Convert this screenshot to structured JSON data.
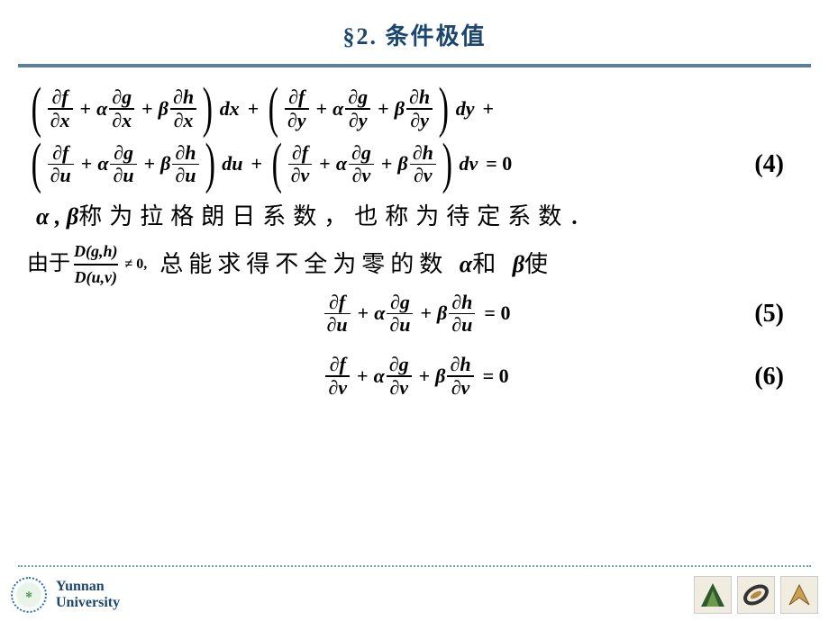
{
  "title": "§2. 条件极值",
  "colors": {
    "title": "#1a4672",
    "rule": "#5a7fa0",
    "text": "#000000",
    "footer_dots": "#739cc0"
  },
  "equations": {
    "line1_groups": [
      {
        "partials": [
          [
            "∂f",
            "∂x"
          ],
          [
            "∂g",
            "∂x"
          ],
          [
            "∂h",
            "∂x"
          ]
        ],
        "coeffs": [
          "",
          "α",
          "β"
        ],
        "diff": "dx"
      },
      {
        "partials": [
          [
            "∂f",
            "∂y"
          ],
          [
            "∂g",
            "∂y"
          ],
          [
            "∂h",
            "∂y"
          ]
        ],
        "coeffs": [
          "",
          "α",
          "β"
        ],
        "diff": "dy"
      }
    ],
    "line2_groups": [
      {
        "partials": [
          [
            "∂f",
            "∂u"
          ],
          [
            "∂g",
            "∂u"
          ],
          [
            "∂h",
            "∂u"
          ]
        ],
        "coeffs": [
          "",
          "α",
          "β"
        ],
        "diff": "du"
      },
      {
        "partials": [
          [
            "∂f",
            "∂v"
          ],
          [
            "∂g",
            "∂v"
          ],
          [
            "∂h",
            "∂v"
          ]
        ],
        "coeffs": [
          "",
          "α",
          "β"
        ],
        "diff": "dv"
      }
    ],
    "eq4_rhs": "= 0",
    "eq4_num": "(4)",
    "textline": "称为拉格朗日系数，也称为待定系数．",
    "alpha": "α",
    "beta": "β",
    "comma": " , ",
    "since": "由于",
    "jacobian_top": "D(g,h)",
    "jacobian_bot": "D(u,v)",
    "ne_zero": "≠ 0,",
    "tail_text1": "总能求得不全为零的数 ",
    "tail_text2": "和 ",
    "tail_text3": "使",
    "eq5": {
      "partials": [
        [
          "∂f",
          "∂u"
        ],
        [
          "∂g",
          "∂u"
        ],
        [
          "∂h",
          "∂u"
        ]
      ],
      "coeffs": [
        "",
        "α",
        "β"
      ],
      "rhs": "= 0",
      "num": "(5)"
    },
    "eq6": {
      "partials": [
        [
          "∂f",
          "∂v"
        ],
        [
          "∂g",
          "∂v"
        ],
        [
          "∂h",
          "∂v"
        ]
      ],
      "coeffs": [
        "",
        "α",
        "β"
      ],
      "rhs": "= 0",
      "num": "(6)"
    }
  },
  "footer": {
    "university_line1": "Yunnan",
    "university_line2": "University"
  }
}
